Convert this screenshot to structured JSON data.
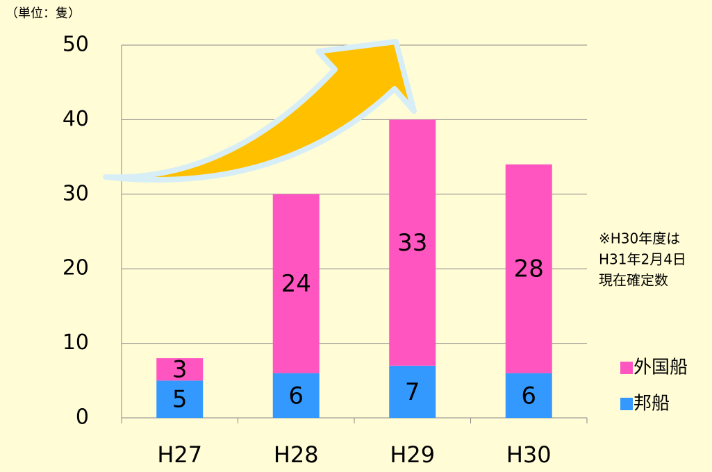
{
  "chart_data": {
    "type": "stacked-bar",
    "unit_label": "（単位：隻）",
    "categories": [
      "H27",
      "H28",
      "H29",
      "H30"
    ],
    "series": [
      {
        "name": "邦船",
        "color": "#3399ff",
        "values": [
          5,
          6,
          7,
          6
        ]
      },
      {
        "name": "外国船",
        "color": "#ff55c0",
        "values": [
          3,
          24,
          33,
          28
        ]
      }
    ],
    "ylim": [
      0,
      50
    ],
    "yticks": [
      0,
      10,
      20,
      30,
      40,
      50
    ],
    "grid": true,
    "note": [
      "※H30年度は",
      "H31年2月4日",
      "現在確定数"
    ],
    "legend": "right"
  }
}
